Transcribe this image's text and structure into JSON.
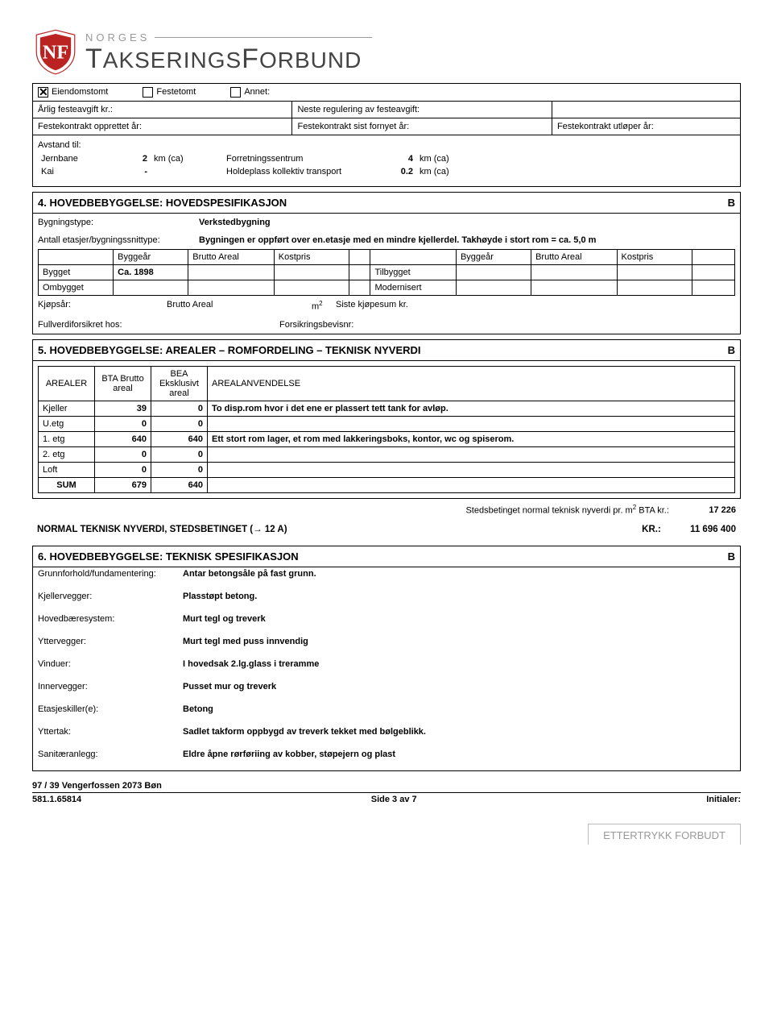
{
  "logo": {
    "norges": "NORGES",
    "forbund_t": "T",
    "forbund_rest": "AKSERINGS",
    "forbund_f": "F",
    "forbund_orbund": "ORBUND"
  },
  "checks": {
    "eiendomstomt": "Eiendomstomt",
    "festetomt": "Festetomt",
    "annet": "Annet:"
  },
  "feste": {
    "arlig": "Årlig festeavgift kr.:",
    "neste": "Neste regulering av festeavgift:",
    "opprettet": "Festekontrakt opprettet år:",
    "fornyet": "Festekontrakt sist fornyet år:",
    "utloper": "Festekontrakt utløper år:"
  },
  "dist": {
    "header": "Avstand til:",
    "rows": [
      {
        "a": "Jernbane",
        "av": "2",
        "au": "km (ca)",
        "b": "Forretningssentrum",
        "bv": "4",
        "bu": "km (ca)"
      },
      {
        "a": "Kai",
        "av": "-",
        "au": "",
        "b": "Holdeplass kollektiv transport",
        "bv": "0.2",
        "bu": "km (ca)"
      }
    ]
  },
  "sec4": {
    "title": "4. HOVEDBEBYGGELSE: HOVEDSPESIFIKASJON",
    "mark": "B",
    "type_l": "Bygningstype:",
    "type_v": "Verkstedbygning",
    "etasjer_l": "Antall etasjer/bygningssnittype:",
    "etasjer_v": "Bygningen er oppført over en.etasje med en mindre kjellerdel. Takhøyde i stort rom = ca. 5,0 m",
    "cols": [
      "",
      "Byggeår",
      "Brutto Areal",
      "Kostpris",
      "",
      "",
      "Byggeår",
      "Brutto Areal",
      "Kostpris",
      ""
    ],
    "rows": [
      [
        "Bygget",
        "Ca. 1898",
        "",
        "",
        "",
        "Tilbygget",
        "",
        "",
        "",
        ""
      ],
      [
        "Ombygget",
        "",
        "",
        "",
        "",
        "Modernisert",
        "",
        "",
        "",
        ""
      ]
    ],
    "kjopsar_l": "Kjøpsår:",
    "brutto_l": "Brutto Areal",
    "m2": "m",
    "siste_l": "Siste kjøpesum kr.",
    "fullverdi_l": "Fullverdiforsikret hos:",
    "forsikring_l": "Forsikringsbevisnr:"
  },
  "sec5": {
    "title": "5. HOVEDBEBYGGELSE: AREALER – ROMFORDELING – TEKNISK NYVERDI",
    "mark": "B",
    "h_arealer": "AREALER",
    "h_bta": "BTA Brutto areal",
    "h_bea": "BEA Eksklusivt areal",
    "h_anv": "AREALANVENDELSE",
    "rows": [
      {
        "l": "Kjeller",
        "a": "39",
        "b": "0",
        "t": "To disp.rom hvor i det ene er plassert tett tank for avløp."
      },
      {
        "l": "U.etg",
        "a": "0",
        "b": "0",
        "t": ""
      },
      {
        "l": "1. etg",
        "a": "640",
        "b": "640",
        "t": "Ett stort rom lager, et rom med lakkeringsboks, kontor, wc og spiserom."
      },
      {
        "l": "2. etg",
        "a": "0",
        "b": "0",
        "t": ""
      },
      {
        "l": "Loft",
        "a": "0",
        "b": "0",
        "t": ""
      },
      {
        "l": "SUM",
        "a": "679",
        "b": "640",
        "t": ""
      }
    ],
    "steds_l": "Stedsbetinget normal teknisk nyverdi pr. m",
    "steds_suffix": " BTA kr.:",
    "steds_v": "17 226",
    "normal_l": "NORMAL TEKNISK NYVERDI, STEDSBETINGET (→ 12 A)",
    "normal_kr": "KR.:",
    "normal_v": "11 696 400"
  },
  "sec6": {
    "title": "6. HOVEDBEBYGGELSE: TEKNISK SPESIFIKASJON",
    "mark": "B",
    "items": [
      {
        "l": "Grunnforhold/fundamentering:",
        "v": "Antar betongsåle på fast grunn."
      },
      {
        "l": "Kjellervegger:",
        "v": "Plasstøpt betong."
      },
      {
        "l": "Hovedbæresystem:",
        "v": "Murt tegl og treverk"
      },
      {
        "l": "Yttervegger:",
        "v": "Murt tegl med puss innvendig"
      },
      {
        "l": "Vinduer:",
        "v": "I hovedsak 2.lg.glass i treramme"
      },
      {
        "l": "Innervegger:",
        "v": "Pusset mur og treverk"
      },
      {
        "l": "Etasjeskiller(e):",
        "v": "Betong"
      },
      {
        "l": "Yttertak:",
        "v": "Sadlet takform oppbygd av treverk tekket med bølgeblikk."
      },
      {
        "l": "Sanitæranlegg:",
        "v": "Eldre åpne rørføriing av kobber, støpejern og plast"
      }
    ]
  },
  "footer": {
    "addr1": "97 / 39   Vengerfossen     2073 Bøn",
    "id": "581.1.65814",
    "page": "Side 3 av 7",
    "init": "Initialer:",
    "wm": "ETTERTRYKK FORBUDT"
  }
}
